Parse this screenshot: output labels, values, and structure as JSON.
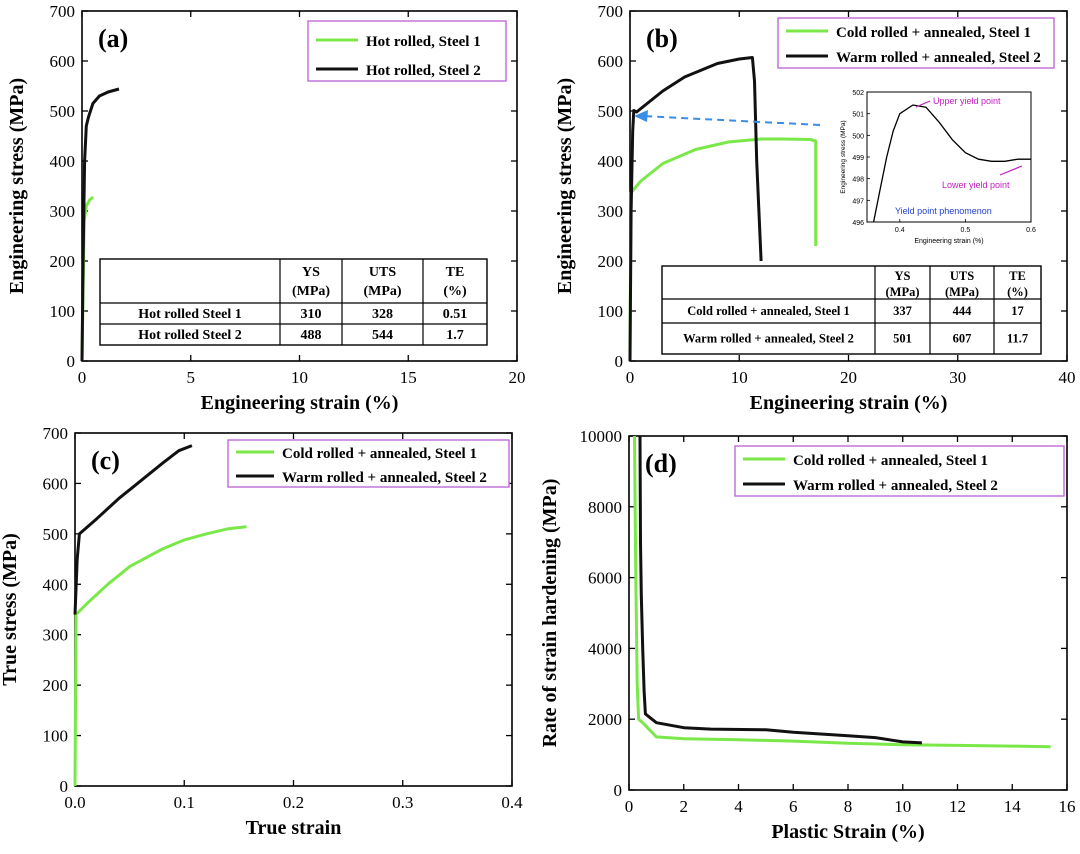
{
  "colors": {
    "steel1": "#7be84a",
    "steel2": "#111111",
    "legend_border": "#c06ad6",
    "arrow": "#3a8ee6",
    "inset_label": "#c020c0",
    "inset_note": "#2040d0"
  },
  "chart_data": [
    {
      "id": "a",
      "type": "line",
      "panel_label": "(a)",
      "xlabel": "Engineering strain (%)",
      "ylabel": "Engineering stress (MPa)",
      "xlim": [
        0,
        20
      ],
      "ylim": [
        0,
        700
      ],
      "xticks": [
        0,
        5,
        10,
        15,
        20
      ],
      "yticks": [
        0,
        100,
        200,
        300,
        400,
        500,
        600,
        700
      ],
      "legend": "top-right",
      "series": [
        {
          "name": "Hot rolled, Steel 1",
          "color": "steel1",
          "points": [
            [
              0,
              0
            ],
            [
              0.05,
              150
            ],
            [
              0.1,
              280
            ],
            [
              0.2,
              310
            ],
            [
              0.35,
              322
            ],
            [
              0.51,
              328
            ]
          ]
        },
        {
          "name": "Hot rolled, Steel 2",
          "color": "steel2",
          "points": [
            [
              0,
              0
            ],
            [
              0.05,
              200
            ],
            [
              0.12,
              400
            ],
            [
              0.2,
              470
            ],
            [
              0.3,
              488
            ],
            [
              0.5,
              515
            ],
            [
              0.8,
              530
            ],
            [
              1.2,
              538
            ],
            [
              1.7,
              544
            ]
          ]
        }
      ],
      "table": {
        "headers": [
          "",
          "YS (MPa)",
          "UTS (MPa)",
          "TE (%)"
        ],
        "header_lines": [
          [
            ""
          ],
          [
            "YS",
            "(MPa)"
          ],
          [
            "UTS",
            "(MPa)"
          ],
          [
            "TE",
            "(%)"
          ]
        ],
        "rows": [
          [
            "Hot rolled Steel 1",
            "310",
            "328",
            "0.51"
          ],
          [
            "Hot rolled Steel 2",
            "488",
            "544",
            "1.7"
          ]
        ]
      }
    },
    {
      "id": "b",
      "type": "line",
      "panel_label": "(b)",
      "xlabel": "Engineering strain (%)",
      "ylabel": "Engineering stress (MPa)",
      "xlim": [
        0,
        40
      ],
      "ylim": [
        0,
        700
      ],
      "xticks": [
        0,
        10,
        20,
        30,
        40
      ],
      "yticks": [
        0,
        100,
        200,
        300,
        400,
        500,
        600,
        700
      ],
      "legend": "top-right",
      "series": [
        {
          "name": "Cold rolled + annealed, Steel 1",
          "color": "steel1",
          "points": [
            [
              0,
              0
            ],
            [
              0.05,
              200
            ],
            [
              0.1,
              337
            ],
            [
              1,
              360
            ],
            [
              3,
              395
            ],
            [
              6,
              423
            ],
            [
              9,
              438
            ],
            [
              12,
              444
            ],
            [
              14,
              444
            ],
            [
              16.5,
              443
            ],
            [
              17,
              440
            ],
            [
              17,
              230
            ]
          ]
        },
        {
          "name": "Warm rolled + annealed, Steel 2",
          "color": "steel2",
          "points": [
            [
              0,
              0
            ],
            [
              0.1,
              300
            ],
            [
              0.25,
              460
            ],
            [
              0.35,
              501
            ],
            [
              0.6,
              498
            ],
            [
              1,
              505
            ],
            [
              3,
              540
            ],
            [
              5,
              568
            ],
            [
              8,
              595
            ],
            [
              10,
              604
            ],
            [
              11.2,
              607
            ],
            [
              11.4,
              560
            ],
            [
              11.6,
              400
            ],
            [
              12,
              200
            ]
          ]
        }
      ],
      "table": {
        "headers": [
          "",
          "YS (MPa)",
          "UTS (MPa)",
          "TE (%)"
        ],
        "header_lines": [
          [
            ""
          ],
          [
            "YS",
            "(MPa)"
          ],
          [
            "UTS",
            "(MPa)"
          ],
          [
            "TE",
            "(%)"
          ]
        ],
        "rows": [
          [
            "Cold rolled + annealed, Steel 1",
            "337",
            "444",
            "17"
          ],
          [
            "Warm rolled + annealed, Steel 2",
            "501",
            "607",
            "11.7"
          ]
        ]
      },
      "inset": {
        "xlabel": "Engineering strain (%)",
        "ylabel": "Engineering stress (MPa)",
        "xlim": [
          0.35,
          0.6
        ],
        "ylim": [
          496,
          502
        ],
        "xticks": [
          0.4,
          0.5,
          0.6
        ],
        "yticks": [
          496,
          497,
          498,
          499,
          500,
          501,
          502
        ],
        "xtick_labels": [
          "0.4",
          "0.5",
          "0.6"
        ],
        "points": [
          [
            0.36,
            496
          ],
          [
            0.37,
            497.5
          ],
          [
            0.38,
            499
          ],
          [
            0.39,
            500.2
          ],
          [
            0.4,
            501
          ],
          [
            0.42,
            501.4
          ],
          [
            0.44,
            501.3
          ],
          [
            0.46,
            500.6
          ],
          [
            0.48,
            499.8
          ],
          [
            0.5,
            499.2
          ],
          [
            0.52,
            498.9
          ],
          [
            0.54,
            498.8
          ],
          [
            0.56,
            498.8
          ],
          [
            0.58,
            498.9
          ],
          [
            0.6,
            498.9
          ]
        ],
        "annotations": {
          "upper": "Upper yield point",
          "lower": "Lower yield point",
          "phenomenon": "Yield point phenomenon"
        }
      }
    },
    {
      "id": "c",
      "type": "line",
      "panel_label": "(c)",
      "xlabel": "True strain",
      "ylabel": "True stress (MPa)",
      "xlim": [
        0,
        0.4
      ],
      "ylim": [
        0,
        700
      ],
      "xticks": [
        0,
        0.1,
        0.2,
        0.3,
        0.4
      ],
      "yticks": [
        0,
        100,
        200,
        300,
        400,
        500,
        600,
        700
      ],
      "xtick_labels": [
        "0.0",
        "0.1",
        "0.2",
        "0.3",
        "0.4"
      ],
      "legend": "top-right",
      "series": [
        {
          "name": "Cold rolled + annealed, Steel 1",
          "color": "steel1",
          "points": [
            [
              0,
              0
            ],
            [
              0.001,
              340
            ],
            [
              0.01,
              360
            ],
            [
              0.03,
              400
            ],
            [
              0.05,
              435
            ],
            [
              0.08,
              470
            ],
            [
              0.1,
              488
            ],
            [
              0.12,
              500
            ],
            [
              0.14,
              510
            ],
            [
              0.157,
              514
            ]
          ]
        },
        {
          "name": "Warm rolled + annealed, Steel  2",
          "color": "steel2",
          "points": [
            [
              0,
              340
            ],
            [
              0.002,
              450
            ],
            [
              0.004,
              500
            ],
            [
              0.02,
              530
            ],
            [
              0.04,
              570
            ],
            [
              0.06,
              605
            ],
            [
              0.08,
              640
            ],
            [
              0.095,
              665
            ],
            [
              0.107,
              675
            ]
          ]
        }
      ]
    },
    {
      "id": "d",
      "type": "line",
      "panel_label": "(d)",
      "xlabel": "Plastic Strain (%)",
      "ylabel": "Rate of strain hardening (MPa)",
      "xlim": [
        0,
        16
      ],
      "ylim": [
        0,
        10000
      ],
      "xticks": [
        0,
        2,
        4,
        6,
        8,
        10,
        12,
        14,
        16
      ],
      "yticks": [
        0,
        2000,
        4000,
        6000,
        8000,
        10000
      ],
      "legend": "top-right",
      "series": [
        {
          "name": "Cold rolled + annealed, Steel 1",
          "color": "steel1",
          "points": [
            [
              0.2,
              10000
            ],
            [
              0.25,
              6000
            ],
            [
              0.3,
              3000
            ],
            [
              0.35,
              2000
            ],
            [
              0.5,
              1900
            ],
            [
              1,
              1500
            ],
            [
              2,
              1450
            ],
            [
              4,
              1420
            ],
            [
              6,
              1380
            ],
            [
              8,
              1320
            ],
            [
              10,
              1280
            ],
            [
              12,
              1260
            ],
            [
              14,
              1240
            ],
            [
              15.4,
              1220
            ]
          ]
        },
        {
          "name": "Warm rolled + annealed, Steel 2",
          "color": "steel2",
          "points": [
            [
              0.4,
              10000
            ],
            [
              0.42,
              7000
            ],
            [
              0.45,
              5500
            ],
            [
              0.5,
              4000
            ],
            [
              0.55,
              2800
            ],
            [
              0.6,
              2150
            ],
            [
              1,
              1900
            ],
            [
              2,
              1760
            ],
            [
              3,
              1720
            ],
            [
              5,
              1700
            ],
            [
              6,
              1630
            ],
            [
              8,
              1530
            ],
            [
              9,
              1480
            ],
            [
              10,
              1360
            ],
            [
              10.7,
              1330
            ]
          ]
        }
      ]
    }
  ]
}
